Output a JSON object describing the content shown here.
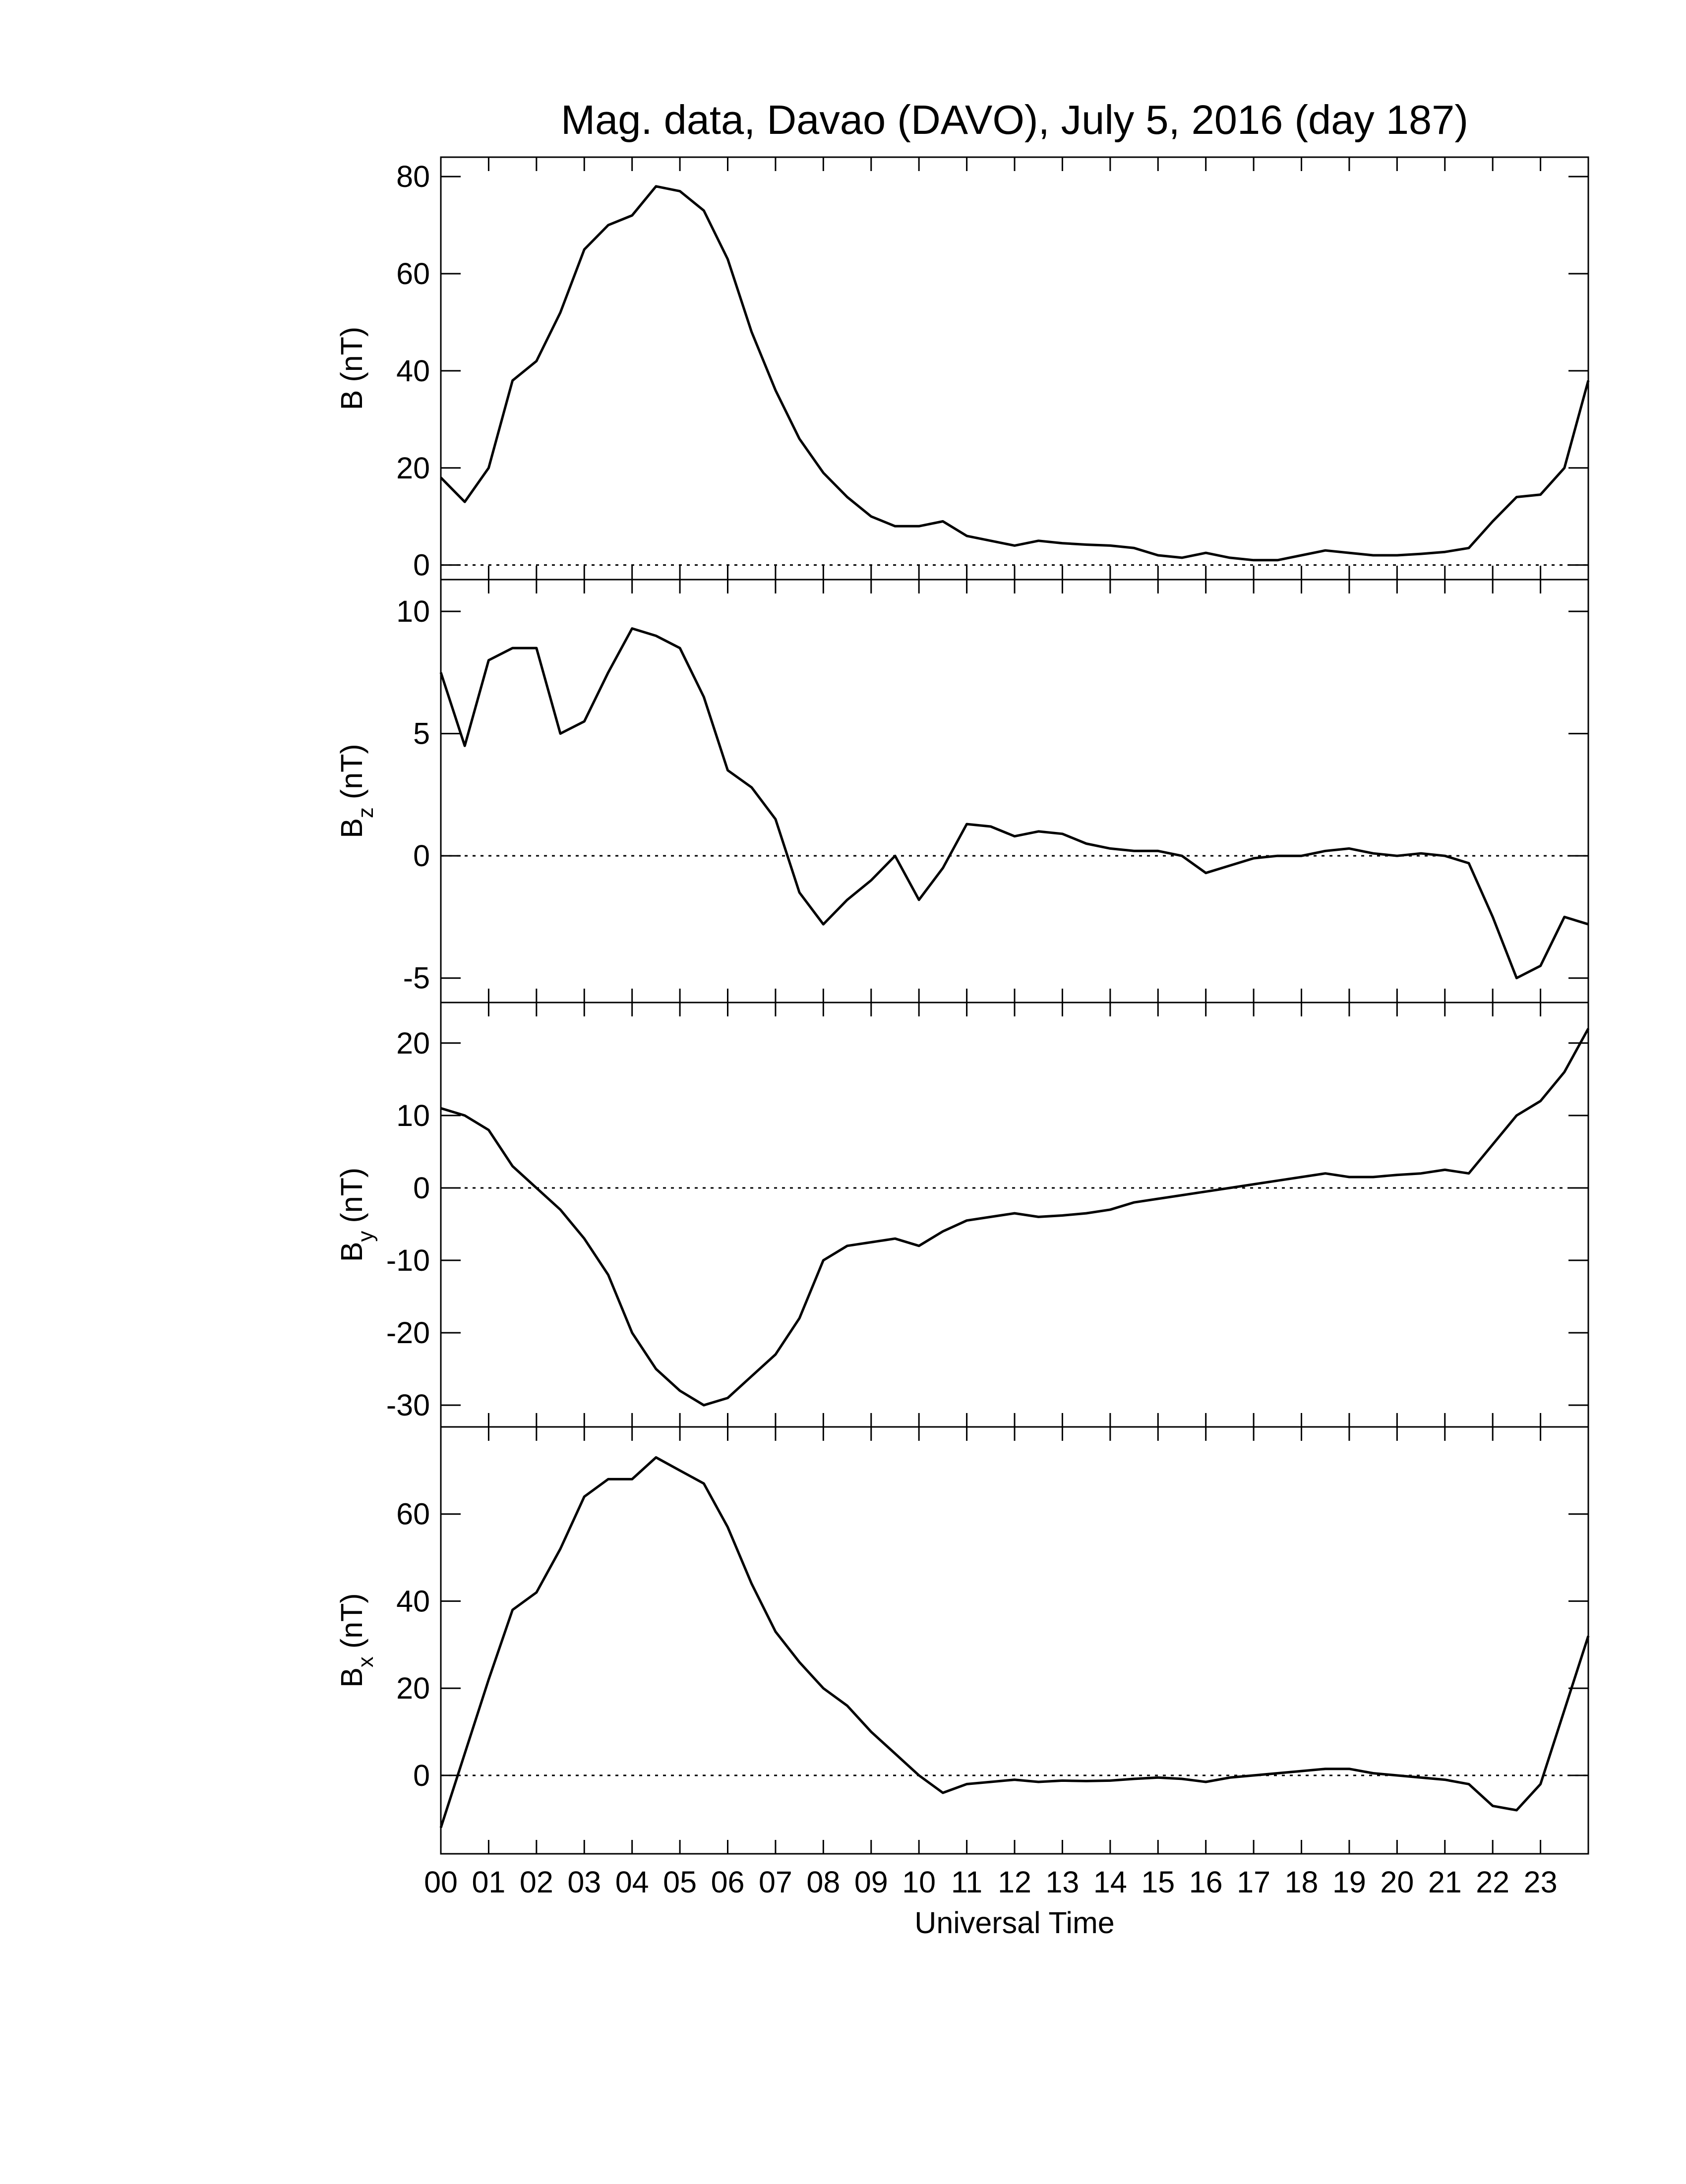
{
  "chart_data": [
    {
      "type": "line",
      "title": "Mag. data, Davao (DAVO), July 5, 2016 (day 187)",
      "ylabel": {
        "symbol": "B",
        "unit": "(nT)"
      },
      "xlim": [
        0,
        24
      ],
      "ylim": [
        -3,
        84
      ],
      "yticks": [
        0,
        20,
        40,
        60,
        80
      ],
      "hline": 0,
      "color": "#000000",
      "x": [
        0,
        0.5,
        1,
        1.5,
        2,
        2.5,
        3,
        3.5,
        4,
        4.5,
        5,
        5.5,
        6,
        6.5,
        7,
        7.5,
        8,
        8.5,
        9,
        9.5,
        10,
        10.5,
        11,
        11.5,
        12,
        12.5,
        13,
        13.5,
        14,
        14.5,
        15,
        15.5,
        16,
        16.5,
        17,
        17.5,
        18,
        18.5,
        19,
        19.5,
        20,
        20.5,
        21,
        21.5,
        22,
        22.5,
        23,
        23.5,
        24
      ],
      "values": [
        18,
        13,
        20,
        38,
        42,
        52,
        65,
        70,
        72,
        78,
        77,
        73,
        63,
        48,
        36,
        26,
        19,
        14,
        10,
        8,
        8,
        9,
        6,
        5,
        4,
        5,
        4.5,
        4.2,
        4,
        3.5,
        2,
        1.5,
        2.5,
        1.5,
        1,
        1,
        2,
        3,
        2.5,
        2,
        2,
        2.3,
        2.7,
        3.5,
        9,
        14,
        14.5,
        20,
        38
      ]
    },
    {
      "type": "line",
      "ylabel": {
        "symbol": "B",
        "subscript": "z",
        "unit": "(nT)"
      },
      "xlim": [
        0,
        24
      ],
      "ylim": [
        -6,
        11.3
      ],
      "yticks": [
        -5,
        0,
        5,
        10
      ],
      "hline": 0,
      "color": "#000000",
      "x": [
        0,
        0.5,
        1,
        1.5,
        2,
        2.5,
        3,
        3.5,
        4,
        4.5,
        5,
        5.5,
        6,
        6.5,
        7,
        7.5,
        8,
        8.5,
        9,
        9.5,
        10,
        10.5,
        11,
        11.5,
        12,
        12.5,
        13,
        13.5,
        14,
        14.5,
        15,
        15.5,
        16,
        16.5,
        17,
        17.5,
        18,
        18.5,
        19,
        19.5,
        20,
        20.5,
        21,
        21.5,
        22,
        22.5,
        23,
        23.5,
        24
      ],
      "values": [
        7.5,
        4.5,
        8,
        8.5,
        8.5,
        5,
        5.5,
        7.5,
        9.3,
        9,
        8.5,
        6.5,
        3.5,
        2.8,
        1.5,
        -1.5,
        -2.8,
        -1.8,
        -1,
        0,
        -1.8,
        -0.5,
        1.3,
        1.2,
        0.8,
        1,
        0.9,
        0.5,
        0.3,
        0.2,
        0.2,
        0,
        -0.7,
        -0.4,
        -0.1,
        0,
        0,
        0.2,
        0.3,
        0.1,
        0,
        0.1,
        0,
        -0.3,
        -2.5,
        -5,
        -4.5,
        -2.5,
        -2.8
      ]
    },
    {
      "type": "line",
      "ylabel": {
        "symbol": "B",
        "subscript": "y",
        "unit": "(nT)"
      },
      "xlim": [
        0,
        24
      ],
      "ylim": [
        -33,
        25.6
      ],
      "yticks": [
        -30,
        -20,
        -10,
        0,
        10,
        20
      ],
      "hline": 0,
      "color": "#000000",
      "x": [
        0,
        0.5,
        1,
        1.5,
        2,
        2.5,
        3,
        3.5,
        4,
        4.5,
        5,
        5.5,
        6,
        6.5,
        7,
        7.5,
        8,
        8.5,
        9,
        9.5,
        10,
        10.5,
        11,
        11.5,
        12,
        12.5,
        13,
        13.5,
        14,
        14.5,
        15,
        15.5,
        16,
        16.5,
        17,
        17.5,
        18,
        18.5,
        19,
        19.5,
        20,
        20.5,
        21,
        21.5,
        22,
        22.5,
        23,
        23.5,
        24
      ],
      "values": [
        11,
        10,
        8,
        3,
        0,
        -3,
        -7,
        -12,
        -20,
        -25,
        -28,
        -30,
        -29,
        -26,
        -23,
        -18,
        -10,
        -8,
        -7.5,
        -7,
        -8,
        -6,
        -4.5,
        -4,
        -3.5,
        -4,
        -3.8,
        -3.5,
        -3,
        -2,
        -1.5,
        -1,
        -0.5,
        0,
        0.5,
        1,
        1.5,
        2,
        1.5,
        1.5,
        1.8,
        2,
        2.5,
        2,
        6,
        10,
        12,
        16,
        22
      ]
    },
    {
      "type": "line",
      "ylabel": {
        "symbol": "B",
        "subscript": "x",
        "unit": "(nT)"
      },
      "xlabel": "Universal Time",
      "xlim": [
        0,
        24
      ],
      "ylim": [
        -18,
        80
      ],
      "yticks": [
        0,
        20,
        40,
        60
      ],
      "hline": 0,
      "color": "#000000",
      "xticks": [
        {
          "value": 0,
          "label": "00"
        },
        {
          "value": 1,
          "label": "01"
        },
        {
          "value": 2,
          "label": "02"
        },
        {
          "value": 3,
          "label": "03"
        },
        {
          "value": 4,
          "label": "04"
        },
        {
          "value": 5,
          "label": "05"
        },
        {
          "value": 6,
          "label": "06"
        },
        {
          "value": 7,
          "label": "07"
        },
        {
          "value": 8,
          "label": "08"
        },
        {
          "value": 9,
          "label": "09"
        },
        {
          "value": 10,
          "label": "10"
        },
        {
          "value": 11,
          "label": "11"
        },
        {
          "value": 12,
          "label": "12"
        },
        {
          "value": 13,
          "label": "13"
        },
        {
          "value": 14,
          "label": "14"
        },
        {
          "value": 15,
          "label": "15"
        },
        {
          "value": 16,
          "label": "16"
        },
        {
          "value": 17,
          "label": "17"
        },
        {
          "value": 18,
          "label": "18"
        },
        {
          "value": 19,
          "label": "19"
        },
        {
          "value": 20,
          "label": "20"
        },
        {
          "value": 21,
          "label": "21"
        },
        {
          "value": 22,
          "label": "22"
        },
        {
          "value": 23,
          "label": "23"
        }
      ],
      "x": [
        0,
        0.5,
        1,
        1.5,
        2,
        2.5,
        3,
        3.5,
        4,
        4.5,
        5,
        5.5,
        6,
        6.5,
        7,
        7.5,
        8,
        8.5,
        9,
        9.5,
        10,
        10.5,
        11,
        11.5,
        12,
        12.5,
        13,
        13.5,
        14,
        14.5,
        15,
        15.5,
        16,
        16.5,
        17,
        17.5,
        18,
        18.5,
        19,
        19.5,
        20,
        20.5,
        21,
        21.5,
        22,
        22.5,
        23,
        23.5,
        24
      ],
      "values": [
        -12,
        5,
        22,
        38,
        42,
        52,
        64,
        68,
        68,
        73,
        70,
        67,
        57,
        44,
        33,
        26,
        20,
        16,
        10,
        5,
        0,
        -4,
        -2,
        -1.5,
        -1,
        -1.5,
        -1.2,
        -1.3,
        -1.2,
        -0.8,
        -0.5,
        -0.8,
        -1.5,
        -0.5,
        0,
        0.5,
        1,
        1.5,
        1.5,
        0.5,
        0,
        -0.5,
        -1,
        -2,
        -7,
        -8,
        -2,
        15,
        32
      ]
    }
  ]
}
